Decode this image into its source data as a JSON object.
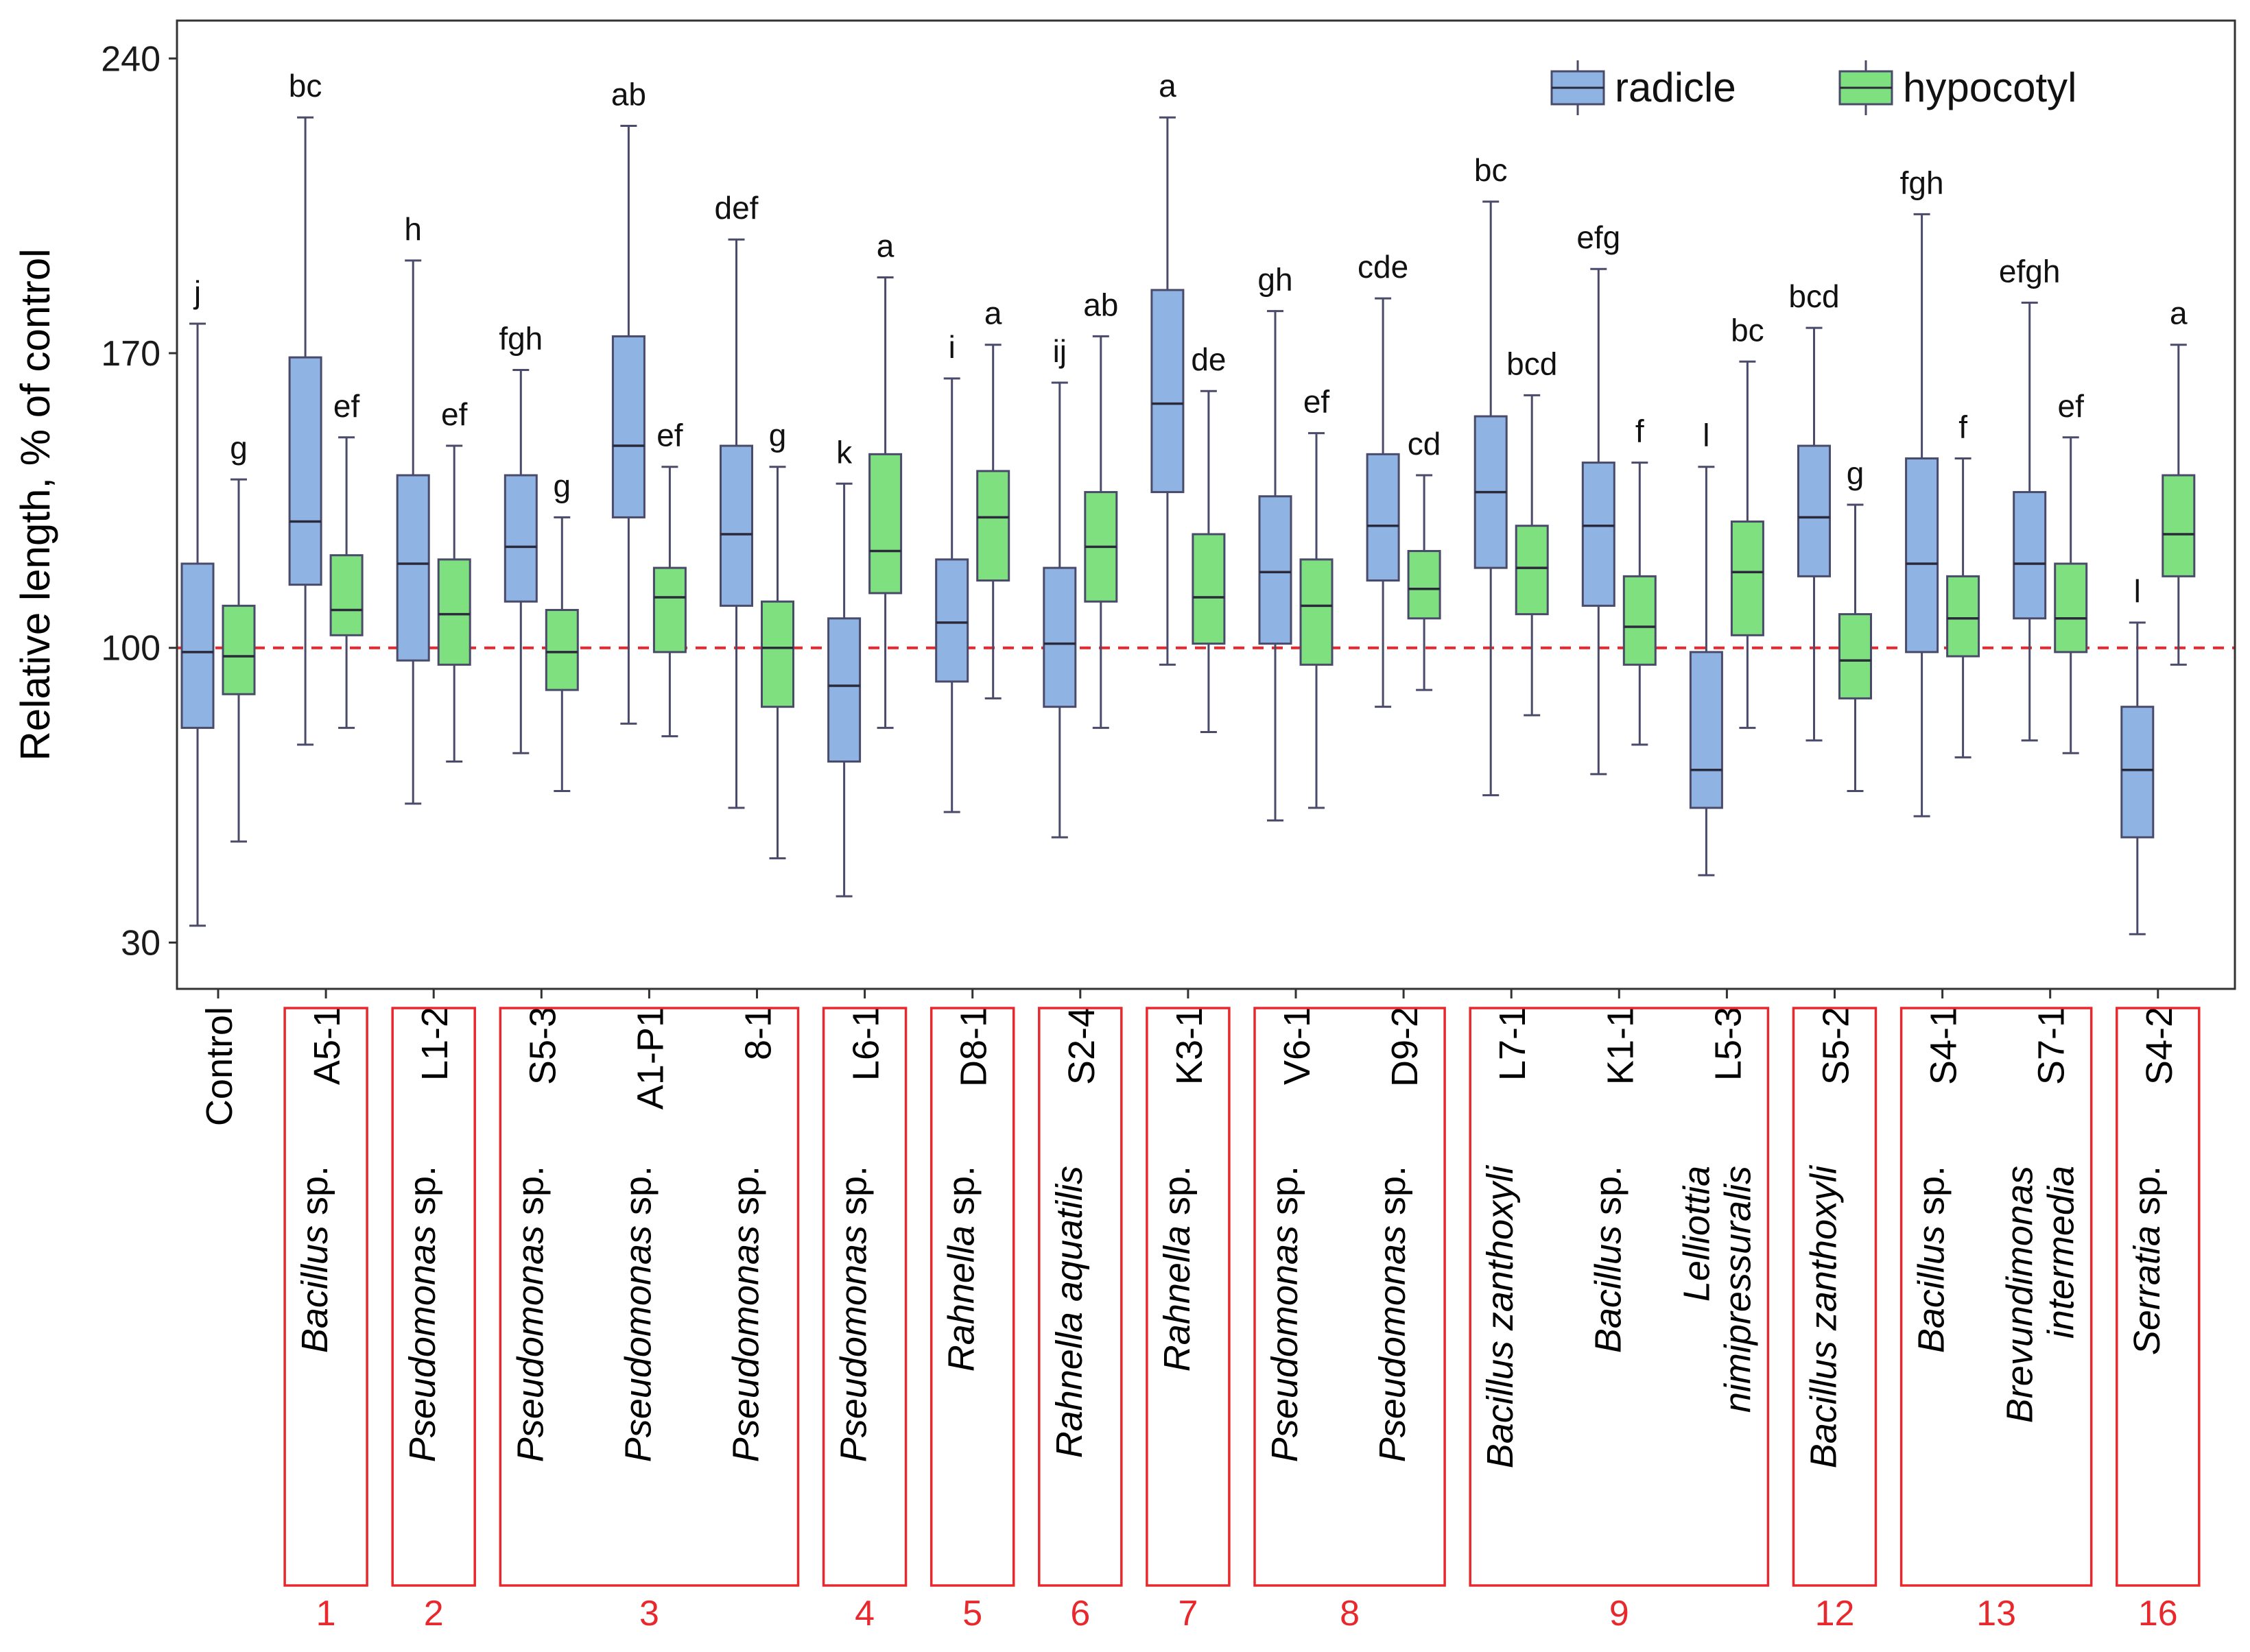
{
  "chart_data": {
    "type": "boxplot",
    "ylabel": "Relative length, % of control",
    "xlabel": "",
    "ylim": [
      19,
      249
    ],
    "yticks": [
      30,
      100,
      170,
      240
    ],
    "reference_line": 100,
    "legend": {
      "placement": "top-right",
      "entries": [
        {
          "name": "radicle",
          "color": "#8fb4e3"
        },
        {
          "name": "hypocotyl",
          "color": "#7fe07f"
        }
      ]
    },
    "colors": {
      "radicle": "#8fb4e3",
      "hypocotyl": "#7fe07f",
      "box_stroke": "#4a4a6a",
      "reference_line": "#e8282c",
      "bracket": "#e8282c",
      "group_number": "#e8282c"
    },
    "categories": [
      {
        "strain": "Control",
        "species": [],
        "radicle": {
          "min": 34,
          "q1": 81,
          "median": 99,
          "q3": 120,
          "max": 177,
          "letter": "j"
        },
        "hypocotyl": {
          "min": 54,
          "q1": 89,
          "median": 98,
          "q3": 110,
          "max": 140,
          "letter": "g"
        }
      },
      {
        "strain": "A5-1",
        "species": [
          {
            "text": "Bacillus",
            "italic": true
          },
          {
            "text": " sp.",
            "italic": false
          }
        ],
        "radicle": {
          "min": 77,
          "q1": 115,
          "median": 130,
          "q3": 169,
          "max": 226,
          "letter": "bc"
        },
        "hypocotyl": {
          "min": 81,
          "q1": 103,
          "median": 109,
          "q3": 122,
          "max": 150,
          "letter": "ef"
        }
      },
      {
        "strain": "L1-2",
        "species": [
          {
            "text": "Pseudomonas",
            "italic": true
          },
          {
            "text": " sp.",
            "italic": false
          }
        ],
        "radicle": {
          "min": 63,
          "q1": 97,
          "median": 120,
          "q3": 141,
          "max": 192,
          "letter": "h"
        },
        "hypocotyl": {
          "min": 73,
          "q1": 96,
          "median": 108,
          "q3": 121,
          "max": 148,
          "letter": "ef"
        }
      },
      {
        "strain": "S5-3",
        "species": [
          {
            "text": "Pseudomonas",
            "italic": true
          },
          {
            "text": " sp.",
            "italic": false
          }
        ],
        "radicle": {
          "min": 75,
          "q1": 111,
          "median": 124,
          "q3": 141,
          "max": 166,
          "letter": "fgh"
        },
        "hypocotyl": {
          "min": 66,
          "q1": 90,
          "median": 99,
          "q3": 109,
          "max": 131,
          "letter": "g"
        }
      },
      {
        "strain": "A1-P1",
        "species": [
          {
            "text": "Pseudomonas",
            "italic": true
          },
          {
            "text": " sp.",
            "italic": false
          }
        ],
        "radicle": {
          "min": 82,
          "q1": 131,
          "median": 148,
          "q3": 174,
          "max": 224,
          "letter": "ab"
        },
        "hypocotyl": {
          "min": 79,
          "q1": 99,
          "median": 112,
          "q3": 119,
          "max": 143,
          "letter": "ef"
        }
      },
      {
        "strain": "8-1",
        "species": [
          {
            "text": "Pseudomonas",
            "italic": true
          },
          {
            "text": " sp.",
            "italic": false
          }
        ],
        "radicle": {
          "min": 62,
          "q1": 110,
          "median": 127,
          "q3": 148,
          "max": 197,
          "letter": "def"
        },
        "hypocotyl": {
          "min": 50,
          "q1": 86,
          "median": 100,
          "q3": 111,
          "max": 143,
          "letter": "g"
        }
      },
      {
        "strain": "L6-1",
        "species": [
          {
            "text": "Pseudomonas",
            "italic": true
          },
          {
            "text": " sp.",
            "italic": false
          }
        ],
        "radicle": {
          "min": 41,
          "q1": 73,
          "median": 91,
          "q3": 107,
          "max": 139,
          "letter": "k"
        },
        "hypocotyl": {
          "min": 81,
          "q1": 113,
          "median": 123,
          "q3": 146,
          "max": 188,
          "letter": "a"
        }
      },
      {
        "strain": "D8-1",
        "species": [
          {
            "text": "Rahnella",
            "italic": true
          },
          {
            "text": " sp.",
            "italic": false
          }
        ],
        "radicle": {
          "min": 61,
          "q1": 92,
          "median": 106,
          "q3": 121,
          "max": 164,
          "letter": "i"
        },
        "hypocotyl": {
          "min": 88,
          "q1": 116,
          "median": 131,
          "q3": 142,
          "max": 172,
          "letter": "a"
        }
      },
      {
        "strain": "S2-4",
        "species": [
          {
            "text": "Rahnella aquatilis",
            "italic": true
          }
        ],
        "radicle": {
          "min": 55,
          "q1": 86,
          "median": 101,
          "q3": 119,
          "max": 163,
          "letter": "ij"
        },
        "hypocotyl": {
          "min": 81,
          "q1": 111,
          "median": 124,
          "q3": 137,
          "max": 174,
          "letter": "ab"
        }
      },
      {
        "strain": "K3-1",
        "species": [
          {
            "text": "Rahnella",
            "italic": true
          },
          {
            "text": " sp.",
            "italic": false
          }
        ],
        "radicle": {
          "min": 96,
          "q1": 137,
          "median": 158,
          "q3": 185,
          "max": 226,
          "letter": "a"
        },
        "hypocotyl": {
          "min": 80,
          "q1": 101,
          "median": 112,
          "q3": 127,
          "max": 161,
          "letter": "de"
        }
      },
      {
        "strain": "V6-1",
        "species": [
          {
            "text": "Pseudomonas",
            "italic": true
          },
          {
            "text": " sp.",
            "italic": false
          }
        ],
        "radicle": {
          "min": 59,
          "q1": 101,
          "median": 118,
          "q3": 136,
          "max": 180,
          "letter": "gh"
        },
        "hypocotyl": {
          "min": 62,
          "q1": 96,
          "median": 110,
          "q3": 121,
          "max": 151,
          "letter": "ef"
        }
      },
      {
        "strain": "D9-2",
        "species": [
          {
            "text": "Pseudomonas",
            "italic": true
          },
          {
            "text": " sp.",
            "italic": false
          }
        ],
        "radicle": {
          "min": 86,
          "q1": 116,
          "median": 129,
          "q3": 146,
          "max": 183,
          "letter": "cde"
        },
        "hypocotyl": {
          "min": 90,
          "q1": 107,
          "median": 114,
          "q3": 123,
          "max": 141,
          "letter": "cd"
        }
      },
      {
        "strain": "L7-1",
        "species": [
          {
            "text": "Bacillus zanthoxyli",
            "italic": true
          }
        ],
        "radicle": {
          "min": 65,
          "q1": 119,
          "median": 137,
          "q3": 155,
          "max": 206,
          "letter": "bc"
        },
        "hypocotyl": {
          "min": 84,
          "q1": 108,
          "median": 119,
          "q3": 129,
          "max": 160,
          "letter": "bcd"
        }
      },
      {
        "strain": "K1-1",
        "species": [
          {
            "text": "Bacillus",
            "italic": true
          },
          {
            "text": " sp.",
            "italic": false
          }
        ],
        "radicle": {
          "min": 70,
          "q1": 110,
          "median": 129,
          "q3": 144,
          "max": 190,
          "letter": "efg"
        },
        "hypocotyl": {
          "min": 77,
          "q1": 96,
          "median": 105,
          "q3": 117,
          "max": 144,
          "letter": "f"
        }
      },
      {
        "strain": "L5-3",
        "species": [
          {
            "text": "Lelliottia",
            "italic": true
          },
          {
            "text": "nimipressuralis",
            "italic": true
          }
        ],
        "radicle": {
          "min": 46,
          "q1": 62,
          "median": 71,
          "q3": 99,
          "max": 143,
          "letter": "l"
        },
        "hypocotyl": {
          "min": 81,
          "q1": 103,
          "median": 118,
          "q3": 130,
          "max": 168,
          "letter": "bc"
        }
      },
      {
        "strain": "S5-2",
        "species": [
          {
            "text": "Bacillus zanthoxyli",
            "italic": true
          }
        ],
        "radicle": {
          "min": 78,
          "q1": 117,
          "median": 131,
          "q3": 148,
          "max": 176,
          "letter": "bcd"
        },
        "hypocotyl": {
          "min": 66,
          "q1": 88,
          "median": 97,
          "q3": 108,
          "max": 134,
          "letter": "g"
        }
      },
      {
        "strain": "S4-1",
        "species": [
          {
            "text": "Bacillus",
            "italic": true
          },
          {
            "text": " sp.",
            "italic": false
          }
        ],
        "radicle": {
          "min": 60,
          "q1": 99,
          "median": 120,
          "q3": 145,
          "max": 203,
          "letter": "fgh"
        },
        "hypocotyl": {
          "min": 74,
          "q1": 98,
          "median": 107,
          "q3": 117,
          "max": 145,
          "letter": "f"
        }
      },
      {
        "strain": "S7-1",
        "species": [
          {
            "text": "Brevundimonas",
            "italic": true
          },
          {
            "text": "intermedia",
            "italic": true
          }
        ],
        "radicle": {
          "min": 78,
          "q1": 107,
          "median": 120,
          "q3": 137,
          "max": 182,
          "letter": "efgh"
        },
        "hypocotyl": {
          "min": 75,
          "q1": 99,
          "median": 107,
          "q3": 120,
          "max": 150,
          "letter": "ef"
        }
      },
      {
        "strain": "S4-2",
        "species": [
          {
            "text": "Serratia",
            "italic": true
          },
          {
            "text": " sp.",
            "italic": false
          }
        ],
        "radicle": {
          "min": 32,
          "q1": 55,
          "median": 71,
          "q3": 86,
          "max": 106,
          "letter": "l"
        },
        "hypocotyl": {
          "min": 96,
          "q1": 117,
          "median": 127,
          "q3": 141,
          "max": 172,
          "letter": "a"
        }
      }
    ],
    "groups": [
      {
        "label": "1",
        "members": [
          1
        ]
      },
      {
        "label": "2",
        "members": [
          2
        ]
      },
      {
        "label": "3",
        "members": [
          3,
          4,
          5
        ]
      },
      {
        "label": "4",
        "members": [
          6
        ]
      },
      {
        "label": "5",
        "members": [
          7
        ]
      },
      {
        "label": "6",
        "members": [
          8
        ]
      },
      {
        "label": "7",
        "members": [
          9
        ]
      },
      {
        "label": "8",
        "members": [
          10,
          11
        ]
      },
      {
        "label": "9",
        "members": [
          12,
          13,
          14
        ]
      },
      {
        "label": "12",
        "members": [
          15
        ]
      },
      {
        "label": "13",
        "members": [
          16,
          17
        ]
      },
      {
        "label": "16",
        "members": [
          18
        ]
      }
    ]
  }
}
